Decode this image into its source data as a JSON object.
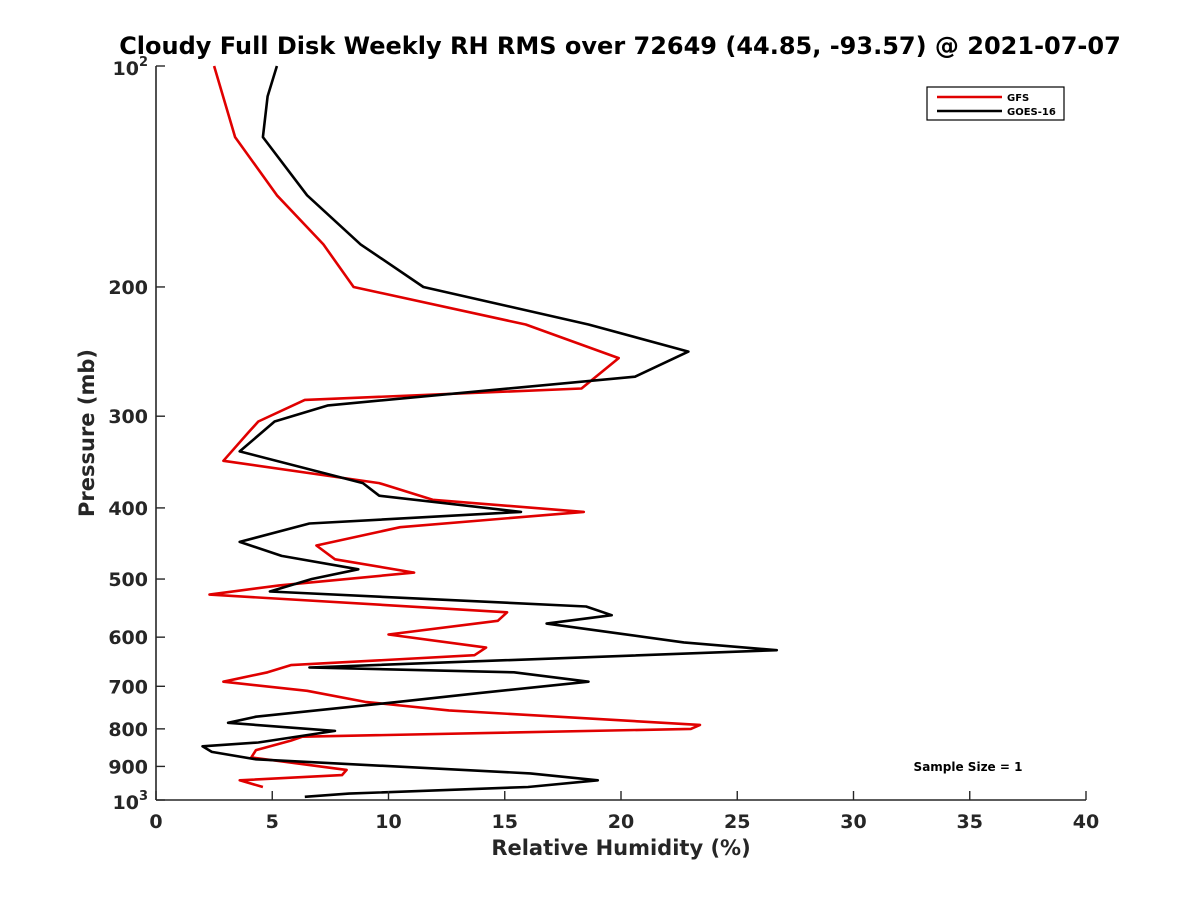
{
  "chart_data": {
    "type": "line",
    "title": "Cloudy Full Disk Weekly RH RMS over 72649 (44.85, -93.57) @ 2021-07-07",
    "xlabel": "Relative Humidity (%)",
    "ylabel": "Pressure (mb)",
    "xlim": [
      0,
      40
    ],
    "ylim": [
      100,
      1000
    ],
    "y_scale": "log",
    "y_reversed": true,
    "grid": false,
    "x_ticks": [
      "0",
      "5",
      "10",
      "15",
      "20",
      "25",
      "30",
      "35",
      "40"
    ],
    "x_tick_values": [
      0,
      5,
      10,
      15,
      20,
      25,
      30,
      35,
      40
    ],
    "y_ticks": [
      {
        "value": 100,
        "base": "10",
        "exp": "2"
      },
      {
        "value": 200,
        "label": "200"
      },
      {
        "value": 300,
        "label": "300"
      },
      {
        "value": 400,
        "label": "400"
      },
      {
        "value": 500,
        "label": "500"
      },
      {
        "value": 600,
        "label": "600"
      },
      {
        "value": 700,
        "label": "700"
      },
      {
        "value": 800,
        "label": "800"
      },
      {
        "value": 900,
        "label": "900"
      },
      {
        "value": 1000,
        "base": "10",
        "exp": "3"
      }
    ],
    "legend": {
      "position": "top-right",
      "entries": [
        "GFS",
        "GOES-16"
      ]
    },
    "annotation": "Sample Size = 1",
    "series": [
      {
        "name": "GFS",
        "color": "#e00000",
        "points": [
          [
            2.5,
            100
          ],
          [
            3.4,
            125
          ],
          [
            5.2,
            150
          ],
          [
            7.2,
            175
          ],
          [
            8.5,
            200
          ],
          [
            15.9,
            225
          ],
          [
            19.9,
            250
          ],
          [
            18.3,
            275
          ],
          [
            6.4,
            285
          ],
          [
            4.4,
            305
          ],
          [
            4.0,
            315
          ],
          [
            2.9,
            345
          ],
          [
            9.6,
            370
          ],
          [
            11.9,
            390
          ],
          [
            18.4,
            405
          ],
          [
            10.5,
            425
          ],
          [
            6.9,
            450
          ],
          [
            7.7,
            470
          ],
          [
            11.1,
            490
          ],
          [
            5.3,
            510
          ],
          [
            2.3,
            525
          ],
          [
            15.1,
            555
          ],
          [
            14.7,
            570
          ],
          [
            10.0,
            595
          ],
          [
            14.2,
            620
          ],
          [
            13.7,
            635
          ],
          [
            5.8,
            655
          ],
          [
            4.8,
            670
          ],
          [
            2.9,
            690
          ],
          [
            6.5,
            710
          ],
          [
            9.0,
            735
          ],
          [
            12.6,
            755
          ],
          [
            23.4,
            790
          ],
          [
            23.0,
            800
          ],
          [
            6.3,
            820
          ],
          [
            5.8,
            830
          ],
          [
            4.3,
            855
          ],
          [
            4.1,
            875
          ],
          [
            8.2,
            910
          ],
          [
            8.0,
            925
          ],
          [
            3.6,
            940
          ],
          [
            4.6,
            960
          ]
        ]
      },
      {
        "name": "GOES-16",
        "color": "#000000",
        "points": [
          [
            5.2,
            100
          ],
          [
            4.8,
            110
          ],
          [
            4.6,
            125
          ],
          [
            6.5,
            150
          ],
          [
            8.8,
            175
          ],
          [
            11.5,
            200
          ],
          [
            18.6,
            225
          ],
          [
            22.9,
            245
          ],
          [
            20.6,
            265
          ],
          [
            7.4,
            290
          ],
          [
            5.1,
            305
          ],
          [
            3.6,
            335
          ],
          [
            8.9,
            370
          ],
          [
            9.6,
            385
          ],
          [
            15.7,
            405
          ],
          [
            6.6,
            420
          ],
          [
            3.6,
            445
          ],
          [
            5.4,
            465
          ],
          [
            8.7,
            485
          ],
          [
            6.7,
            500
          ],
          [
            4.9,
            520
          ],
          [
            18.5,
            545
          ],
          [
            19.6,
            560
          ],
          [
            16.8,
            575
          ],
          [
            22.7,
            610
          ],
          [
            26.7,
            625
          ],
          [
            6.6,
            660
          ],
          [
            15.4,
            670
          ],
          [
            18.6,
            690
          ],
          [
            13.9,
            715
          ],
          [
            10.4,
            735
          ],
          [
            4.3,
            770
          ],
          [
            3.1,
            785
          ],
          [
            7.7,
            805
          ],
          [
            4.4,
            835
          ],
          [
            2.0,
            845
          ],
          [
            2.4,
            860
          ],
          [
            4.3,
            880
          ],
          [
            16.1,
            920
          ],
          [
            19.0,
            940
          ],
          [
            16.0,
            960
          ],
          [
            8.3,
            980
          ],
          [
            6.4,
            990
          ]
        ]
      }
    ]
  }
}
